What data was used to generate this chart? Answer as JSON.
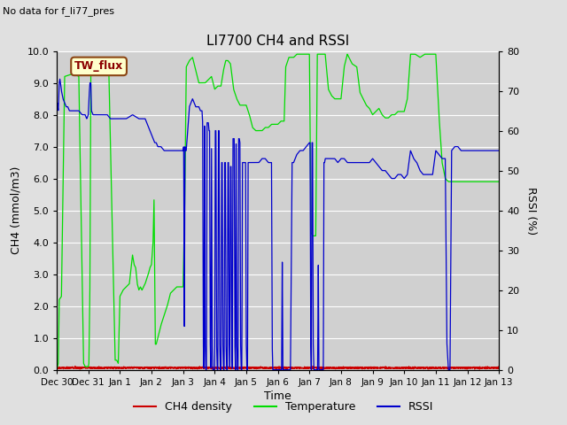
{
  "title": "LI7700 CH4 and RSSI",
  "top_left_text": "No data for f_li77_pres",
  "xlabel": "Time",
  "ylabel_left": "CH4 (mmol/m3)",
  "ylabel_right": "RSSI (%)",
  "ylim_left": [
    0,
    10.0
  ],
  "ylim_right": [
    0,
    80
  ],
  "yticks_left": [
    0.0,
    1.0,
    2.0,
    3.0,
    4.0,
    5.0,
    6.0,
    7.0,
    8.0,
    9.0,
    10.0
  ],
  "yticks_right": [
    0,
    10,
    20,
    30,
    40,
    50,
    60,
    70,
    80
  ],
  "bg_color": "#e0e0e0",
  "plot_bg_color": "#d0d0d0",
  "grid_color": "white",
  "ch4_color": "#cc0000",
  "temp_color": "#00dd00",
  "rssi_color": "#0000cc",
  "legend_labels": [
    "CH4 density",
    "Temperature",
    "RSSI"
  ],
  "box_label": "TW_flux",
  "box_facecolor": "#ffffcc",
  "box_edgecolor": "#8B4513",
  "x_tick_labels": [
    "Dec 30",
    "Dec 31",
    "Jan 1",
    "Jan 2",
    "Jan 3",
    "Jan 4",
    "Jan 5",
    "Jan 6",
    "Jan 7",
    "Jan 8",
    "Jan 9",
    "Jan 10",
    "Jan 11",
    "Jan 12",
    "Jan 13"
  ],
  "n_points": 5000,
  "figwidth": 6.4,
  "figheight": 4.8,
  "dpi": 100
}
